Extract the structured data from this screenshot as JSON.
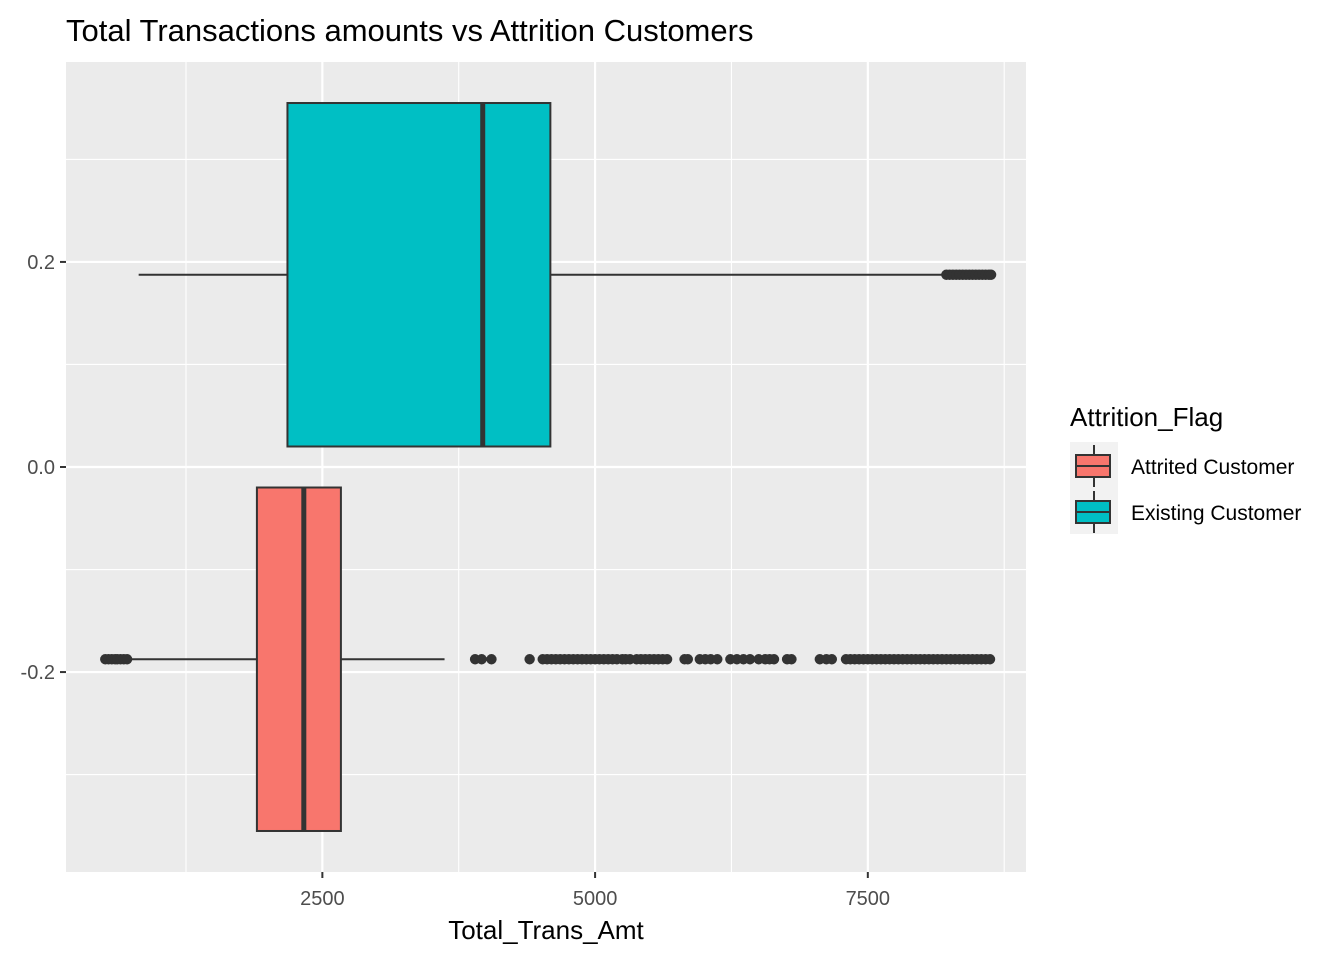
{
  "chart_data": {
    "type": "boxplot",
    "title": "Total Transactions amounts vs Attrition Customers",
    "xlabel": "Total_Trans_Amt",
    "ylabel": "",
    "xlim": [
      150,
      8950
    ],
    "ylim": [
      -0.395,
      0.395
    ],
    "x_ticks": [
      2500,
      5000,
      7500
    ],
    "x_tick_labels": [
      "2500",
      "5000",
      "7500"
    ],
    "y_ticks": [
      -0.2,
      0.0,
      0.2
    ],
    "y_tick_labels": [
      "-0.2",
      "0.0",
      "0.2"
    ],
    "grid": true,
    "background": "#ebebeb",
    "legend": {
      "title": "Attrition_Flag",
      "position": "right",
      "entries": [
        {
          "label": "Attrited Customer",
          "color": "#f8766d"
        },
        {
          "label": "Existing Customer",
          "color": "#00bfc4"
        }
      ]
    },
    "series": [
      {
        "name": "Attrited Customer",
        "color": "#f8766d",
        "y_center": -0.1875,
        "y_range": [
          -0.355,
          -0.02
        ],
        "whisker_low": 510,
        "q1": 1900,
        "median": 2330,
        "q3": 2670,
        "whisker_high": 3620,
        "outliers": [
          510,
          540,
          570,
          600,
          620,
          650,
          680,
          710,
          3900,
          3960,
          4050,
          4400,
          4520,
          4560,
          4600,
          4640,
          4680,
          4720,
          4760,
          4800,
          4840,
          4880,
          4920,
          4960,
          5000,
          5040,
          5080,
          5120,
          5160,
          5200,
          5250,
          5280,
          5320,
          5380,
          5420,
          5460,
          5500,
          5540,
          5580,
          5620,
          5660,
          5820,
          5850,
          5960,
          6010,
          6060,
          6120,
          6240,
          6300,
          6360,
          6420,
          6500,
          6560,
          6600,
          6640,
          6760,
          6800,
          7060,
          7120,
          7170,
          7300,
          7340,
          7380,
          7420,
          7460,
          7500,
          7540,
          7580,
          7620,
          7660,
          7700,
          7740,
          7780,
          7820,
          7860,
          7900,
          7940,
          7980,
          8020,
          8060,
          8100,
          8140,
          8180,
          8220,
          8260,
          8300,
          8340,
          8380,
          8420,
          8460,
          8500,
          8540,
          8580,
          8620
        ]
      },
      {
        "name": "Existing Customer",
        "color": "#00bfc4",
        "y_center": 0.1875,
        "y_range": [
          0.02,
          0.355
        ],
        "whisker_low": 816,
        "q1": 2180,
        "median": 3970,
        "q3": 4590,
        "whisker_high": 8200,
        "outliers": [
          8220,
          8250,
          8280,
          8310,
          8340,
          8370,
          8400,
          8430,
          8460,
          8490,
          8520,
          8550,
          8580,
          8610,
          8630
        ]
      }
    ]
  }
}
